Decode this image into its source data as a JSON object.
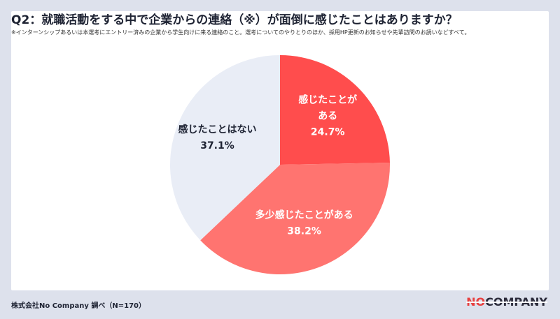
{
  "title": "Q2：就職活動をする中で企業からの連絡（※）が面倒に感じたことはありますか？",
  "note": "※インターンシップあるいは本選考にエントリー済みの企業から学生向けに来る連絡のこと。選考についてのやりとりのほか、採用HP更新のお知らせや先輩訪問のお誘いなどすべて。",
  "footer": {
    "source": "株式会社No Company 調べ（N=170）"
  },
  "logo": {
    "part1": "NO",
    "part2": "COMPANY"
  },
  "colors": {
    "page_bg": "#dde1ec",
    "card_bg": "#ffffff",
    "accent": "#e8403f"
  },
  "chart_data": {
    "type": "pie",
    "slices": [
      {
        "label": "感じたことがある",
        "label_lines": [
          "感じたことが",
          "ある"
        ],
        "value": 24.7,
        "value_label": "24.7%",
        "color": "#ff4d4d",
        "text_color": "#ffffff"
      },
      {
        "label": "多少感じたことがある",
        "label_lines": [
          "多少感じたことがある"
        ],
        "value": 38.2,
        "value_label": "38.2%",
        "color": "#ff7470",
        "text_color": "#ffffff"
      },
      {
        "label": "感じたことはない",
        "label_lines": [
          "感じたことはない"
        ],
        "value": 37.1,
        "value_label": "37.1%",
        "color": "#e9edf6",
        "text_color": "#1e2333"
      }
    ],
    "start_angle": "12 o'clock",
    "direction": "clockwise",
    "legend": "none"
  }
}
